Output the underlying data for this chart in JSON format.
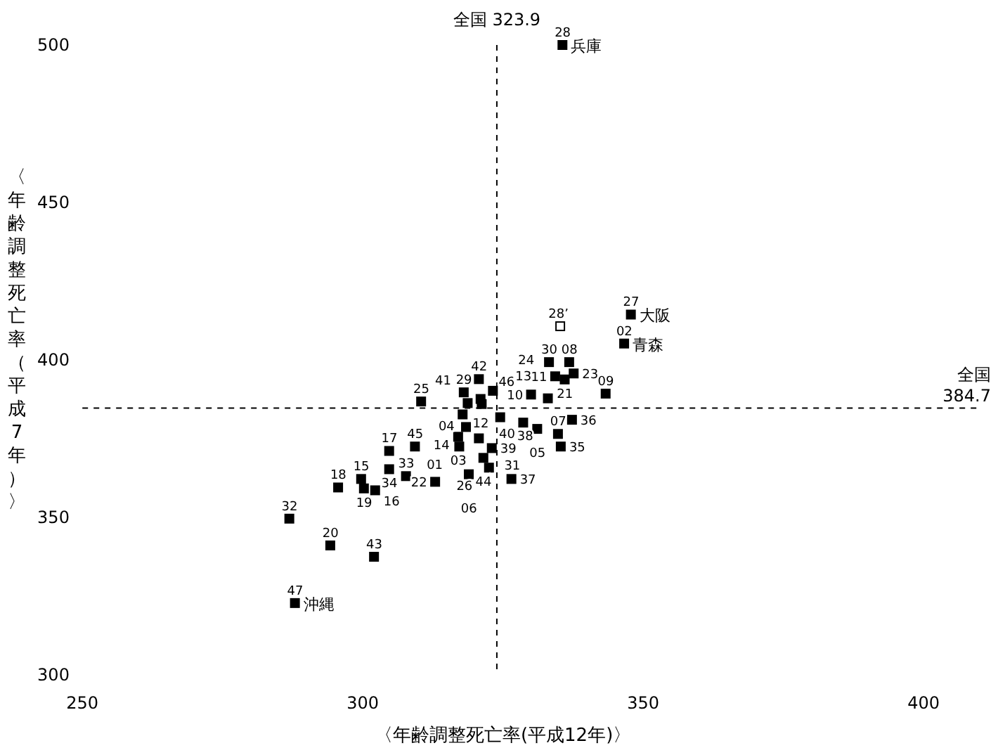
{
  "chart_data": {
    "type": "scatter",
    "xlabel": "〈年齢調整死亡率(平成12年)〉",
    "ylabel": "〈年齢調整死亡率（平成7年）〉",
    "xlim": [
      250,
      410
    ],
    "ylim": [
      300,
      500
    ],
    "xticks": [
      250,
      300,
      350,
      400
    ],
    "yticks": [
      300,
      350,
      400,
      450,
      500
    ],
    "grid": false,
    "marker": "square",
    "series": [
      {
        "color": "#000000",
        "x": [
          335.6,
          347.8,
          346.6,
          333.2,
          336.8,
          334.3,
          336.0,
          337.6,
          343.3,
          330.0,
          333.0,
          320.7,
          323.2,
          318.0,
          318.7,
          321.0,
          321.2,
          310.4,
          317.8,
          324.5,
          318.4,
          328.6,
          331.1,
          337.3,
          334.8,
          335.3,
          317.0,
          320.7,
          317.2,
          323.0,
          321.5,
          322.5,
          318.9,
          326.5,
          309.3,
          304.7,
          304.7,
          307.7,
          312.9,
          299.7,
          300.2,
          302.2,
          295.6,
          286.9,
          294.2,
          302.0,
          287.9
        ],
        "values": [
          500,
          414.4,
          405.2,
          399.3,
          399.3,
          394.8,
          393.8,
          395.7,
          389.3,
          389.0,
          387.8,
          393.9,
          390.2,
          389.7,
          386.3,
          387.6,
          386.0,
          386.8,
          382.7,
          381.8,
          378.7,
          380.1,
          378.1,
          381.0,
          376.5,
          372.5,
          375.6,
          375.1,
          372.5,
          372.0,
          368.9,
          365.8,
          363.7,
          362.2,
          372.5,
          371.1,
          365.3,
          363.1,
          361.3,
          362.2,
          359.2,
          358.6,
          359.5,
          349.6,
          341.1,
          337.5,
          322.8
        ]
      },
      {
        "color": "#ffffff",
        "x": [
          335.2
        ],
        "values": [
          410.7
        ]
      }
    ],
    "ref_lines": [
      {
        "axis": "x",
        "value": 323.9,
        "label": "全国 323.9",
        "line_style": "dashed"
      },
      {
        "axis": "y",
        "value": 384.7,
        "label": "全国 384.7",
        "line_style": "dashed"
      }
    ],
    "annotations": [
      {
        "text": "28",
        "x": 335.6,
        "y": 500
      },
      {
        "text": "兵庫",
        "x": 335.6,
        "y": 500
      },
      {
        "text": "27",
        "x": 347.8,
        "y": 414.4
      },
      {
        "text": "大阪",
        "x": 347.8,
        "y": 414.4
      },
      {
        "text": "02",
        "x": 346.6,
        "y": 405.2
      },
      {
        "text": "青森",
        "x": 346.6,
        "y": 405.2
      },
      {
        "text": "30",
        "x": 333.2,
        "y": 399.3
      },
      {
        "text": "08",
        "x": 336.8,
        "y": 399.3
      },
      {
        "text": "11",
        "x": 334.3,
        "y": 394.8
      },
      {
        "text": "21",
        "x": 336.0,
        "y": 393.8
      },
      {
        "text": "23",
        "x": 337.6,
        "y": 395.7
      },
      {
        "text": "09",
        "x": 343.3,
        "y": 389.3
      },
      {
        "text": "10",
        "x": 330.0,
        "y": 389.0
      },
      {
        "text": "13",
        "x": 333.0,
        "y": 387.8
      },
      {
        "text": "42",
        "x": 320.7,
        "y": 393.9
      },
      {
        "text": "24",
        "x": 323.2,
        "y": 390.2
      },
      {
        "text": "29",
        "x": 318.0,
        "y": 389.7
      },
      {
        "text": "41",
        "x": 318.7,
        "y": 386.3
      },
      {
        "text": "12",
        "x": 321.0,
        "y": 387.6
      },
      {
        "text": "46",
        "x": 321.2,
        "y": 386.0
      },
      {
        "text": "25",
        "x": 310.4,
        "y": 386.8
      },
      {
        "text": "04",
        "x": 317.8,
        "y": 382.7
      },
      {
        "text": "38",
        "x": 324.5,
        "y": 381.8
      },
      {
        "text": "14",
        "x": 318.4,
        "y": 378.7
      },
      {
        "text": "40",
        "x": 328.6,
        "y": 380.1
      },
      {
        "text": "05",
        "x": 331.1,
        "y": 378.1
      },
      {
        "text": "36",
        "x": 337.3,
        "y": 381.0
      },
      {
        "text": "07",
        "x": 334.8,
        "y": 376.5
      },
      {
        "text": "35",
        "x": 335.3,
        "y": 372.5
      },
      {
        "text": "03",
        "x": 317.0,
        "y": 375.6
      },
      {
        "text": "31",
        "x": 320.7,
        "y": 375.1
      },
      {
        "text": "01",
        "x": 317.2,
        "y": 372.5
      },
      {
        "text": "39",
        "x": 323.0,
        "y": 372.0
      },
      {
        "text": "44",
        "x": 321.5,
        "y": 368.9
      },
      {
        "text": "26",
        "x": 322.5,
        "y": 365.8
      },
      {
        "text": "06",
        "x": 318.9,
        "y": 363.7
      },
      {
        "text": "37",
        "x": 326.5,
        "y": 362.2
      },
      {
        "text": "45",
        "x": 309.3,
        "y": 372.5
      },
      {
        "text": "17",
        "x": 304.7,
        "y": 371.1
      },
      {
        "text": "34",
        "x": 304.7,
        "y": 365.3
      },
      {
        "text": "33",
        "x": 307.7,
        "y": 363.1
      },
      {
        "text": "22",
        "x": 312.9,
        "y": 361.3
      },
      {
        "text": "15",
        "x": 299.7,
        "y": 362.2
      },
      {
        "text": "19",
        "x": 300.2,
        "y": 359.2
      },
      {
        "text": "16",
        "x": 302.2,
        "y": 358.6
      },
      {
        "text": "18",
        "x": 295.6,
        "y": 359.5
      },
      {
        "text": "32",
        "x": 286.9,
        "y": 349.6
      },
      {
        "text": "20",
        "x": 294.2,
        "y": 341.1
      },
      {
        "text": "43",
        "x": 302.0,
        "y": 337.5
      },
      {
        "text": "47",
        "x": 287.9,
        "y": 322.8
      },
      {
        "text": "沖縄",
        "x": 287.9,
        "y": 322.8
      },
      {
        "text": "28’",
        "x": 335.2,
        "y": 410.7
      }
    ]
  }
}
